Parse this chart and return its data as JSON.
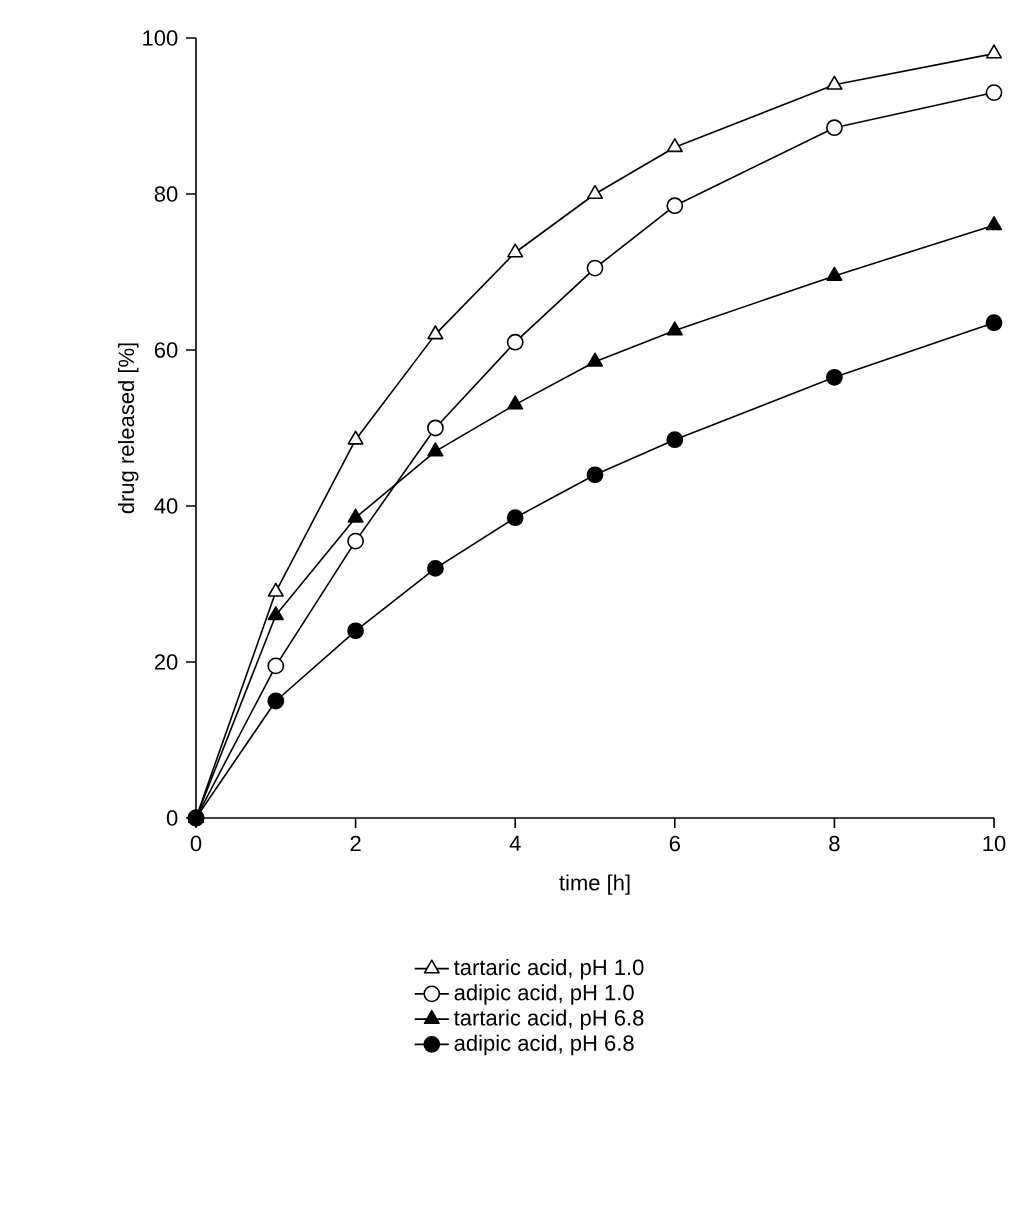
{
  "chart_data": {
    "type": "line",
    "xlabel": "time [h]",
    "ylabel": "drug released [%]",
    "x": [
      0,
      1,
      2,
      3,
      4,
      5,
      6,
      8,
      10
    ],
    "xlim": [
      0,
      10
    ],
    "xticks": [
      0,
      2,
      4,
      6,
      8,
      10
    ],
    "ylim": [
      0,
      100
    ],
    "yticks": [
      0,
      20,
      40,
      60,
      80,
      100
    ],
    "legend": "bottom",
    "grid": false,
    "series": [
      {
        "name": "tartaric acid, pH 1.0",
        "marker": "triangle",
        "color": "#ffffff",
        "values": [
          0,
          29,
          48.5,
          62,
          72.5,
          80,
          86,
          94,
          98
        ]
      },
      {
        "name": "adipic acid, pH 1.0",
        "marker": "circle",
        "color": "#ffffff",
        "values": [
          0,
          19.5,
          35.5,
          50,
          61,
          70.5,
          78.5,
          88.5,
          93
        ]
      },
      {
        "name": "tartaric acid, pH 6.8",
        "marker": "triangle",
        "color": "#000000",
        "values": [
          0,
          26,
          38.5,
          47,
          53,
          58.5,
          62.5,
          69.5,
          76
        ]
      },
      {
        "name": "adipic acid, pH 6.8",
        "marker": "circle",
        "color": "#000000",
        "values": [
          0,
          15,
          24,
          32,
          38.5,
          44,
          48.5,
          56.5,
          63.5
        ]
      }
    ]
  }
}
